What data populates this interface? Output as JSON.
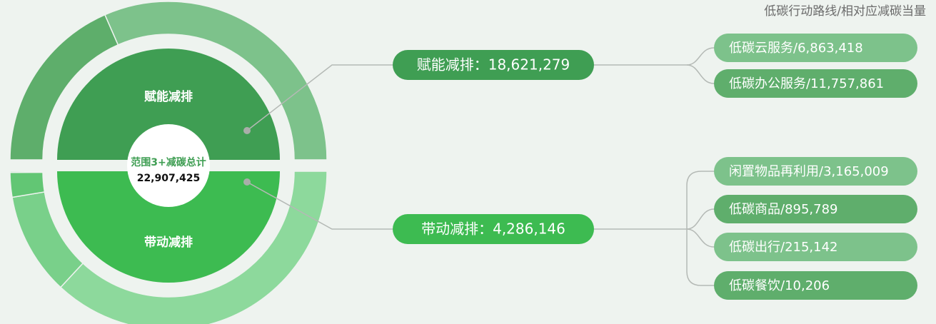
{
  "header": {
    "title": "低碳行动路线/相对应减碳当量"
  },
  "center": {
    "label": "范围3+减碳总计",
    "value_label": "22,907,425"
  },
  "groups": [
    {
      "name": "赋能减排",
      "value": 18621279,
      "pill": "赋能减排：18,621,279",
      "color": "#3f9e53",
      "items": [
        {
          "label": "低碳云服务/6,863,418",
          "value": 6863418,
          "color": "#5eae6b"
        },
        {
          "label": "低碳办公服务/11,757,861",
          "value": 11757861,
          "color": "#7dc28b"
        }
      ]
    },
    {
      "name": "带动减排",
      "value": 4286146,
      "pill": "带动减排：4,286,146",
      "color": "#3dbb51",
      "items": [
        {
          "label": "闲置物品再利用/3,165,009",
          "value": 3165009,
          "color": "#8dd99c"
        },
        {
          "label": "低碳商品/895,789",
          "value": 895789,
          "color": "#79d08a"
        },
        {
          "label": "低碳出行/215,142",
          "value": 215142,
          "color": "#62c674"
        },
        {
          "label": "低碳餐饮/10,206",
          "value": 10206,
          "color": "#52bf64"
        }
      ]
    }
  ]
}
